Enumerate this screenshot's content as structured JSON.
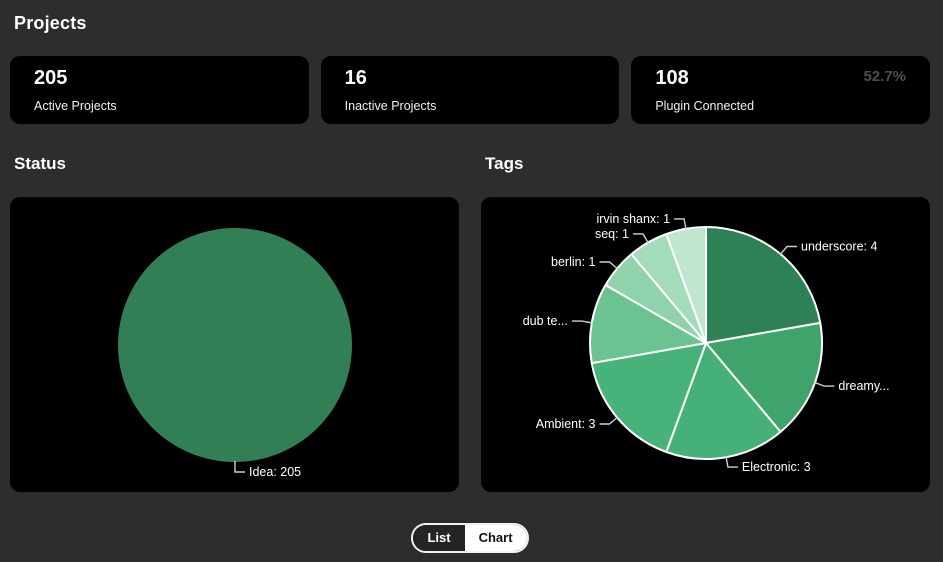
{
  "page": {
    "title": "Projects",
    "background": "#2d2d2d",
    "panel_color": "#000000"
  },
  "stats": [
    {
      "value": "205",
      "label": "Active Projects"
    },
    {
      "value": "16",
      "label": "Inactive Projects"
    },
    {
      "value": "108",
      "label": "Plugin Connected",
      "badge": "52.7%",
      "badge_color": "#4d4d4d"
    }
  ],
  "sections": {
    "status_title": "Status",
    "tags_title": "Tags"
  },
  "toggle": {
    "list_label": "List",
    "chart_label": "Chart",
    "active": "Chart"
  },
  "chart_data": [
    {
      "id": "status-pie",
      "type": "pie",
      "title": "Status",
      "start": "top",
      "direction": "clockwise",
      "legend": "none",
      "label_position": "outside",
      "slices": [
        {
          "label": "Idea",
          "value": 205,
          "display": "Idea: 205",
          "color": "#337f55"
        }
      ]
    },
    {
      "id": "tags-pie",
      "type": "pie",
      "title": "Tags",
      "start": "top",
      "direction": "clockwise",
      "legend": "none",
      "label_position": "outside",
      "slices": [
        {
          "label": "underscore",
          "value": 4,
          "display": "underscore: 4",
          "color": "#2e8156"
        },
        {
          "label": "dreamy...",
          "value": 3,
          "display": "dreamy...",
          "color": "#3fa46b"
        },
        {
          "label": "Electronic",
          "value": 3,
          "display": "Electronic: 3",
          "color": "#45b078"
        },
        {
          "label": "Ambient",
          "value": 3,
          "display": "Ambient: 3",
          "color": "#47b27a"
        },
        {
          "label": "dub te...",
          "value": 2,
          "display": "dub te...",
          "color": "#6cc392"
        },
        {
          "label": "berlin",
          "value": 1,
          "display": "berlin: 1",
          "color": "#8fd2ab"
        },
        {
          "label": "seq",
          "value": 1,
          "display": "seq: 1",
          "color": "#a3dcbb"
        },
        {
          "label": "irvin shanx",
          "value": 1,
          "display": "irvin shanx: 1",
          "color": "#c0e6cf"
        }
      ]
    }
  ]
}
